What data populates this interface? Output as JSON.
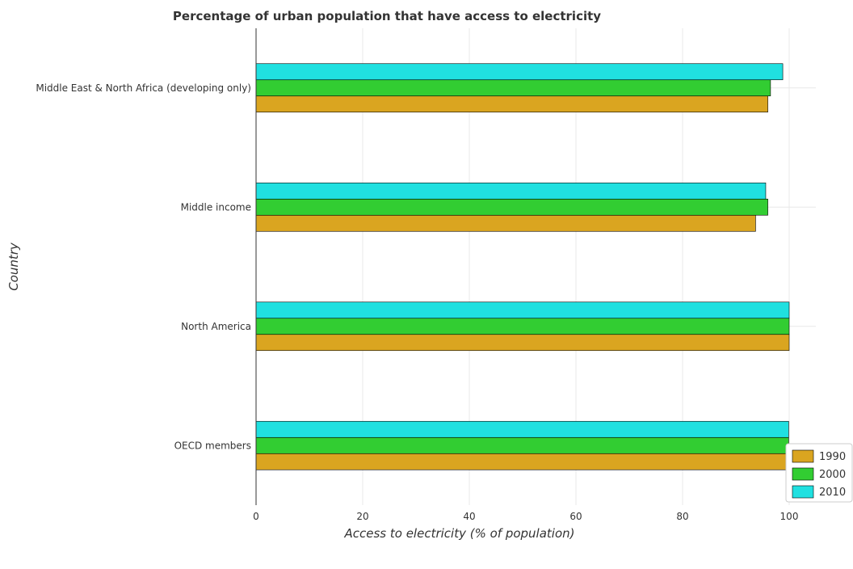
{
  "chart_data": {
    "type": "bar",
    "orientation": "horizontal",
    "title": "Percentage of urban population that have access to electricity",
    "xlabel": "Access to electricity (% of population)",
    "ylabel": "Country",
    "xlim": [
      0,
      105
    ],
    "xticks": [
      0,
      20,
      40,
      60,
      80,
      100
    ],
    "grid": true,
    "legend_position": "bottom-right",
    "categories": [
      "Middle East & North Africa (developing only)",
      "Middle income",
      "North America",
      "OECD members"
    ],
    "series": [
      {
        "name": "1990",
        "color": "#DAA520",
        "values": [
          96.0,
          93.7,
          100.0,
          99.8
        ]
      },
      {
        "name": "2000",
        "color": "#32CD32",
        "values": [
          96.5,
          96.0,
          100.0,
          99.9
        ]
      },
      {
        "name": "2010",
        "color": "#20E0E0",
        "values": [
          98.8,
          95.6,
          100.0,
          99.9
        ]
      }
    ]
  }
}
